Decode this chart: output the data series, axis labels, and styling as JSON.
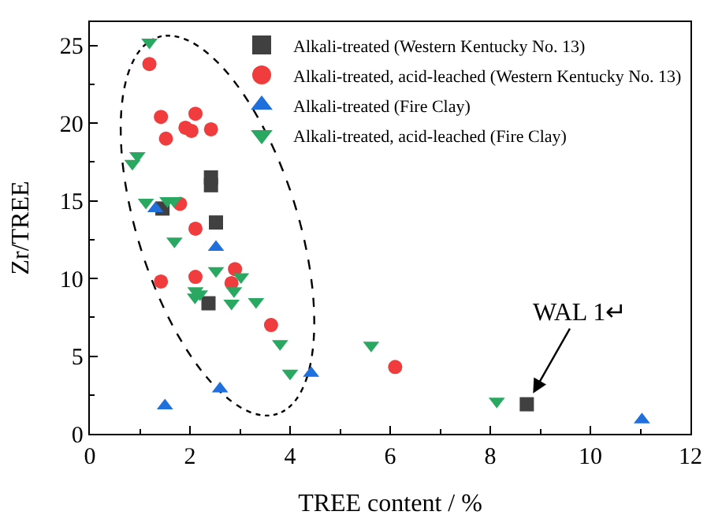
{
  "chart_data": {
    "type": "scatter",
    "xlabel": "TREE content / %",
    "ylabel": "Zr/TREE",
    "xlim": [
      0,
      12
    ],
    "xticks": [
      0,
      2,
      4,
      6,
      8,
      10,
      12
    ],
    "ylim": [
      0,
      26.5
    ],
    "yticks": [
      0,
      5,
      10,
      15,
      20,
      25
    ],
    "grid": false,
    "legend": "top right",
    "series": [
      {
        "name": "Alkali-treated (Western Kentucky No. 13)",
        "color": "#404040",
        "marker": "square",
        "x": [
          2.42,
          2.42,
          2.52,
          1.45,
          2.3,
          2.37,
          8.73
        ],
        "values": [
          16.5,
          16.0,
          13.6,
          14.5,
          null,
          8.4,
          1.9
        ]
      },
      {
        "name": "Alkali-treated, acid-leached (Western Kentucky No. 13)",
        "color": "#f03c3c",
        "marker": "circle",
        "x": [
          1.19,
          1.42,
          2.11,
          1.91,
          2.03,
          2.42,
          1.52,
          1.8,
          2.11,
          1.42,
          2.11,
          2.9,
          2.83,
          3.62,
          6.1
        ],
        "values": [
          23.8,
          20.4,
          20.6,
          19.7,
          19.5,
          19.6,
          19.0,
          14.8,
          13.2,
          9.8,
          10.1,
          10.6,
          9.7,
          7.0,
          4.3
        ]
      },
      {
        "name": "Alkali-treated (Fire Clay)",
        "color": "#1f6fdc",
        "marker": "triangle",
        "x": [
          1.31,
          2.52,
          1.5,
          2.6,
          4.42,
          11.03
        ],
        "values": [
          14.5,
          12.0,
          1.8,
          2.9,
          3.9,
          0.9
        ]
      },
      {
        "name": "Alkali-treated, acid-leached (Fire Clay)",
        "color": "#28a860",
        "marker": "triangle-down",
        "x": [
          1.19,
          0.85,
          0.95,
          1.12,
          1.55,
          1.68,
          1.69,
          2.52,
          2.11,
          2.2,
          2.1,
          3.02,
          2.88,
          2.83,
          3.32,
          3.8,
          4.0,
          5.62,
          8.13
        ],
        "values": [
          25.2,
          17.4,
          17.9,
          14.9,
          15.0,
          15.0,
          12.4,
          10.5,
          9.2,
          9.0,
          8.8,
          10.1,
          9.2,
          8.4,
          8.5,
          5.8,
          3.9,
          5.7,
          2.1
        ]
      }
    ],
    "annotations": [
      {
        "text": "WAL 1↵",
        "x": 8.73,
        "y": 1.9
      }
    ]
  }
}
